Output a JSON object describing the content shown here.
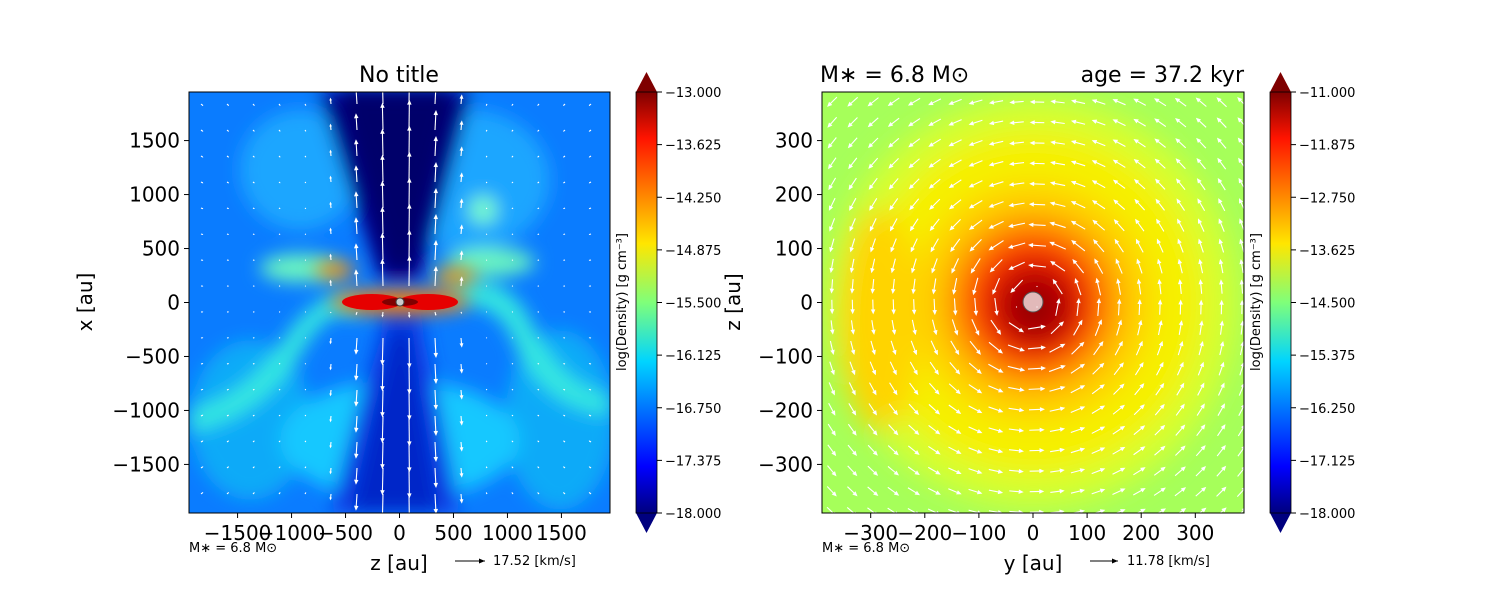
{
  "chart_data": [
    {
      "type": "heatmap",
      "title": "No title",
      "xlabel": "z [au]",
      "ylabel": "x [au]",
      "xlim": [
        -1950,
        1950
      ],
      "ylim": [
        -1950,
        1950
      ],
      "xticks": [
        -1500,
        -1000,
        -500,
        0,
        500,
        1000,
        1500
      ],
      "xtick_labels": [
        "−1500",
        "−1000",
        "−500",
        "0",
        "500",
        "1000",
        "1500"
      ],
      "yticks": [
        1500,
        1000,
        500,
        0,
        -500,
        -1000,
        -1500
      ],
      "ytick_labels": [
        "1500",
        "1000",
        "500",
        "0",
        "−500",
        "−1000",
        "−1500"
      ],
      "colorbar": {
        "label": "log(Density) [g cm$^{-3}$]",
        "min": -18.0,
        "max": -13.0,
        "ticks": [
          -13.0,
          -13.625,
          -14.25,
          -14.875,
          -15.5,
          -16.125,
          -16.75,
          -17.375,
          -18.0
        ],
        "tick_labels": [
          "−13.000",
          "−13.625",
          "−14.250",
          "−14.875",
          "−15.500",
          "−16.125",
          "−16.750",
          "−17.375",
          "−18.000"
        ]
      },
      "annotation": "M$_*$ = 6.8 M$_\\odot$",
      "vector_key": "17.52 [km/s]",
      "structure": "bipolar low-density outflow along x axis, dense edge-on disk at x=0, curved filaments at x≈-1000"
    },
    {
      "type": "heatmap",
      "title_left": "M$_*$ = 6.8 M$_\\odot$",
      "title_right": "age = 37.2 kyr",
      "xlabel": "y [au]",
      "ylabel": "z [au]",
      "xlim": [
        -390,
        390
      ],
      "ylim": [
        -390,
        390
      ],
      "xticks": [
        -300,
        -200,
        -100,
        0,
        100,
        200,
        300
      ],
      "xtick_labels": [
        "−300",
        "−200",
        "−100",
        "0",
        "100",
        "200",
        "300"
      ],
      "yticks": [
        300,
        200,
        100,
        0,
        -100,
        -200,
        -300
      ],
      "ytick_labels": [
        "300",
        "200",
        "100",
        "0",
        "−100",
        "−200",
        "−300"
      ],
      "colorbar": {
        "label": "log(Density) [g cm$^{-3}$]",
        "min": -18.0,
        "max": -11.0,
        "ticks": [
          -11.0,
          -11.875,
          -12.75,
          -13.625,
          -14.5,
          -15.375,
          -16.25,
          -17.125,
          -18.0
        ],
        "tick_labels": [
          "−11.000",
          "−11.875",
          "−12.750",
          "−13.625",
          "−14.500",
          "−15.375",
          "−16.250",
          "−17.125",
          "−18.000"
        ]
      },
      "annotation": "M$_*$ = 6.8 M$_\\odot$",
      "vector_key": "11.78 [km/s]",
      "structure": "face-on disk with dense core at origin and counter-clockwise rotating velocity field"
    }
  ]
}
